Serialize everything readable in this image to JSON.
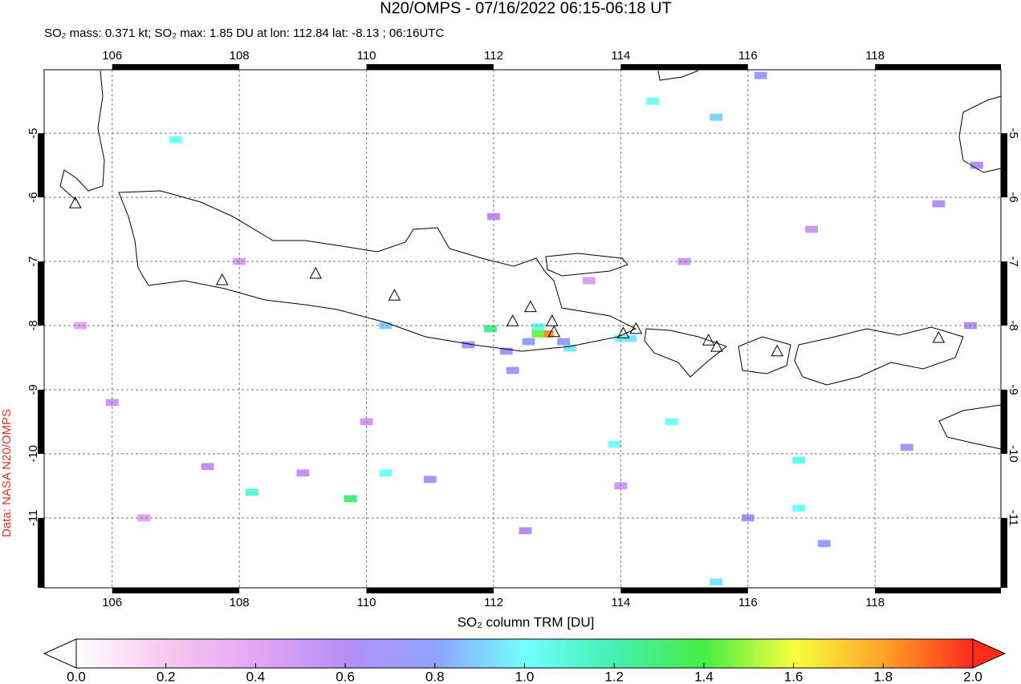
{
  "title": "N20/OMPS - 07/16/2022 06:15-06:18 UT",
  "subtitle": "SO₂ mass: 0.371 kt; SO₂ max: 1.85 DU at lon: 112.84 lat: -8.13 ; 06:16UTC",
  "credit": "Data: NASA N20/OMPS",
  "chart_data": {
    "type": "map",
    "xlim": [
      104.93,
      119.98
    ],
    "ylim": [
      -12.09,
      -4.01
    ],
    "xticks": [
      106,
      108,
      110,
      112,
      114,
      116,
      118
    ],
    "yticks": [
      -5,
      -6,
      -7,
      -8,
      -9,
      -10,
      -11
    ],
    "grid": true,
    "pixels": {
      "lon": [
        112.84,
        112.7,
        112.7,
        111.95,
        112.55,
        113.2,
        114.0,
        114.15,
        113.1,
        111.6,
        112.2,
        112.3,
        115.5,
        114.5,
        116.2,
        107.0,
        109.75,
        108.2,
        110.3,
        113.9,
        114.8,
        116.8,
        116.8,
        115.5,
        117.2,
        119.0,
        118.5,
        110.3,
        111.0,
        112.5,
        109.0,
        107.5,
        106.0,
        108.0,
        115.0,
        117.0,
        119.5,
        112.0,
        113.5,
        105.5,
        119.6,
        116.0,
        114.0,
        110.0,
        106.5
      ],
      "lat": [
        -8.13,
        -8.13,
        -8.02,
        -8.05,
        -8.25,
        -8.35,
        -8.2,
        -8.2,
        -8.25,
        -8.3,
        -8.4,
        -8.7,
        -4.75,
        -4.5,
        -4.1,
        -5.1,
        -10.7,
        -10.6,
        -10.3,
        -9.85,
        -9.5,
        -10.1,
        -10.85,
        -12.0,
        -11.4,
        -6.1,
        -9.9,
        -8.0,
        -10.4,
        -11.2,
        -10.3,
        -10.2,
        -9.2,
        -7.0,
        -7.0,
        -6.5,
        -8.0,
        -6.3,
        -7.3,
        -8.0,
        -5.5,
        -11.0,
        -10.5,
        -9.5,
        -11.0
      ],
      "values": [
        1.85,
        1.45,
        1.05,
        1.25,
        0.8,
        0.95,
        1.0,
        0.95,
        0.75,
        0.7,
        0.65,
        0.7,
        0.9,
        1.0,
        0.75,
        1.0,
        1.3,
        1.1,
        1.0,
        1.0,
        1.0,
        1.05,
        1.0,
        0.95,
        0.75,
        0.6,
        0.65,
        0.9,
        0.6,
        0.6,
        0.55,
        0.55,
        0.5,
        0.45,
        0.5,
        0.5,
        0.6,
        0.6,
        0.45,
        0.4,
        0.6,
        0.65,
        0.5,
        0.5,
        0.4
      ]
    },
    "volcanoes": {
      "lon": [
        105.42,
        107.73,
        109.2,
        110.44,
        112.3,
        112.58,
        112.92,
        112.95,
        114.04,
        114.24,
        115.38,
        115.51,
        116.46,
        119.0
      ],
      "lat": [
        -6.1,
        -7.3,
        -7.2,
        -7.54,
        -7.94,
        -7.72,
        -7.94,
        -8.11,
        -8.13,
        -8.06,
        -8.24,
        -8.34,
        -8.41,
        -8.2
      ]
    },
    "colorbar": {
      "label": "SO₂ column TRM [DU]",
      "lim": [
        0,
        2
      ],
      "colors": [
        "#ffffff",
        "#f8c8ee",
        "#e2a6f4",
        "#b58ef6",
        "#8fa2ff",
        "#72ffff",
        "#44f0b0",
        "#44ee44",
        "#f6ff3c",
        "#ffa428",
        "#ff2a1a"
      ],
      "ticks": [
        {
          "value": 0,
          "label": "0.0"
        },
        {
          "value": 0.2,
          "label": "0.2"
        },
        {
          "value": 0.4,
          "label": "0.4"
        },
        {
          "value": 0.6,
          "label": "0.6"
        },
        {
          "value": 0.8,
          "label": "0.8"
        },
        {
          "value": 1,
          "label": "1.0"
        },
        {
          "value": 1.2,
          "label": "1.2"
        },
        {
          "value": 1.4,
          "label": "1.4"
        },
        {
          "value": 1.6,
          "label": "1.6"
        },
        {
          "value": 1.8,
          "label": "1.8"
        },
        {
          "value": 2,
          "label": "2.0"
        }
      ]
    }
  }
}
